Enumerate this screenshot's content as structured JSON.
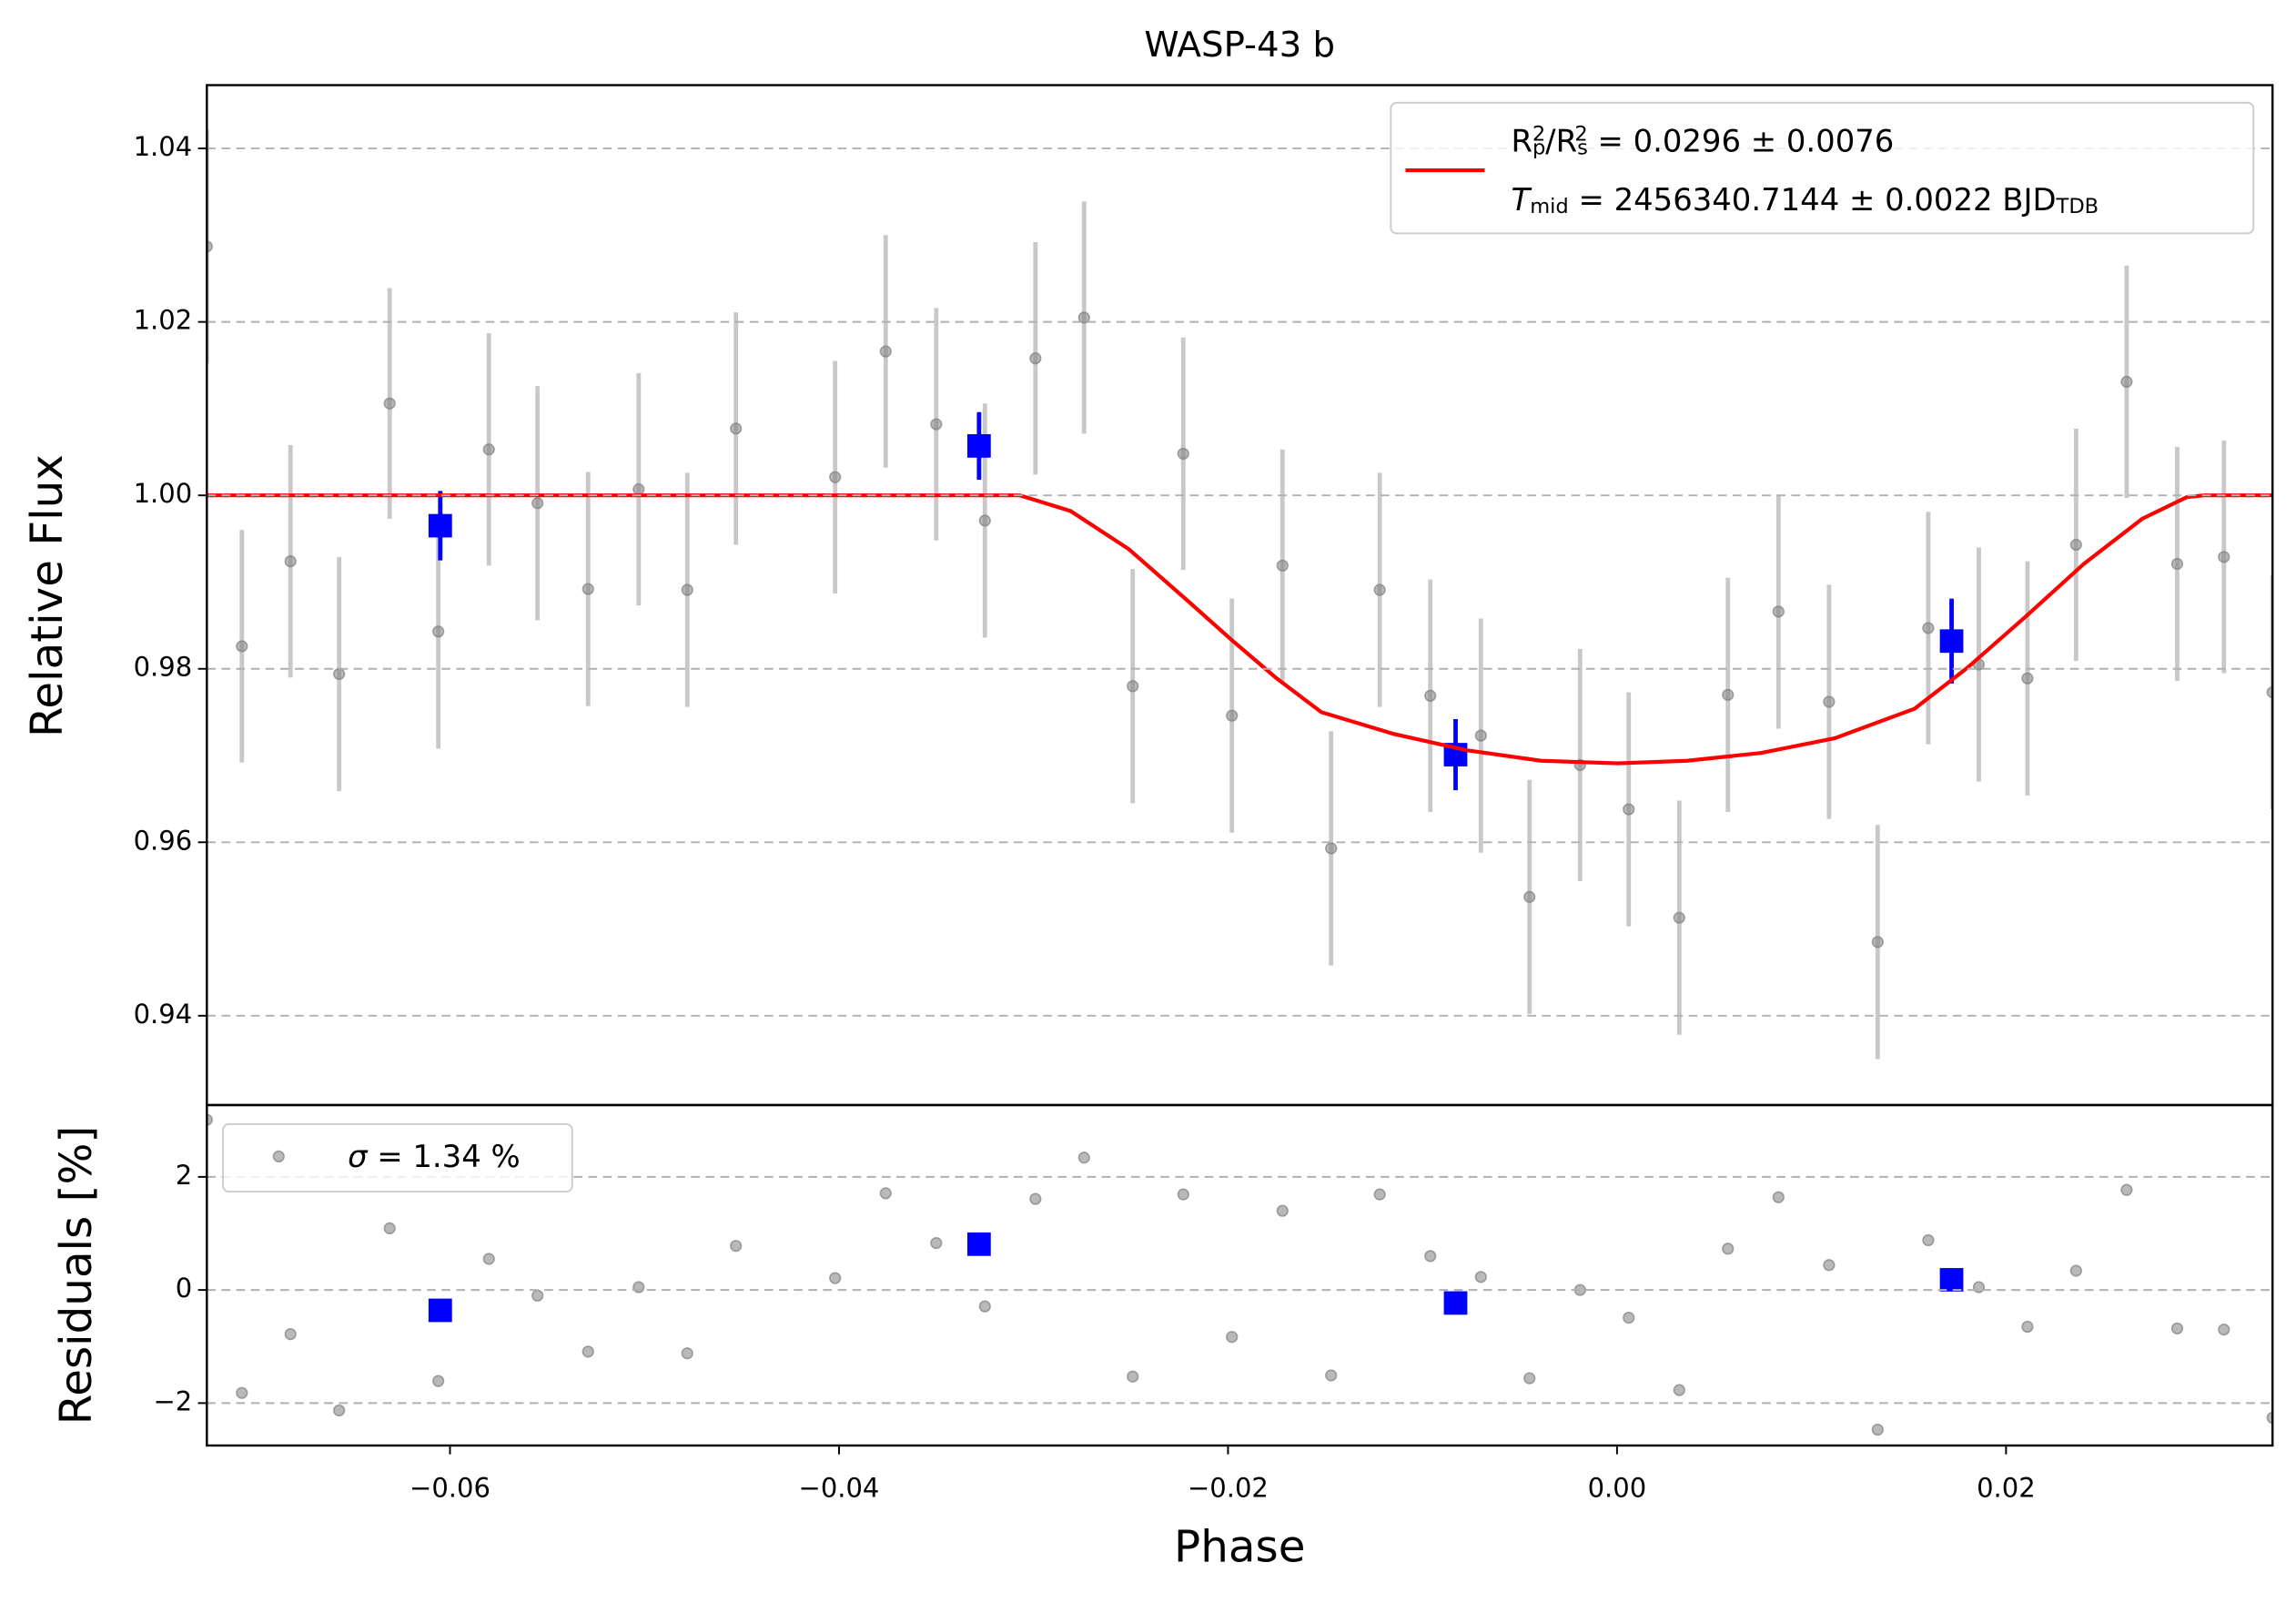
{
  "chart_data": [
    {
      "type": "errorbar",
      "title": "WASP-43 b",
      "ylabel": "Relative Flux",
      "xlim": [
        -0.0725,
        0.0337
      ],
      "ylim": [
        0.9297,
        1.0473
      ],
      "yticks": [
        0.94,
        0.96,
        0.98,
        {
          "value": 1,
          "label": "1.00"
        },
        1.02,
        1.04
      ],
      "grid": true,
      "legend": "upper right",
      "series": [
        {
          "style": "points",
          "color": "#808080",
          "ecolor": "#c8c8c8",
          "x": [
            -0.0725,
            -0.0707,
            -0.0682,
            -0.0657,
            -0.0631,
            -0.0606,
            -0.058,
            -0.0555,
            -0.0529,
            -0.0503,
            -0.0478,
            -0.0453,
            -0.0402,
            -0.0376,
            -0.035,
            -0.0325,
            -0.0299,
            -0.0274,
            -0.0249,
            -0.0223,
            -0.0198,
            -0.0172,
            -0.0147,
            -0.0122,
            -0.0096,
            -0.007,
            -0.0045,
            -0.0019,
            0.0006,
            0.0032,
            0.0057,
            0.0083,
            0.0109,
            0.0134,
            0.016,
            0.0186,
            0.0211,
            0.0236,
            0.0262,
            0.0288,
            0.0312,
            0.0337
          ],
          "values": [
            1.0287,
            0.9826,
            0.9924,
            0.9794,
            1.0106,
            0.9843,
            1.0053,
            0.9991,
            0.9892,
            1.0007,
            0.9891,
            1.0077,
            1.0021,
            1.0166,
            1.0082,
            0.9971,
            1.0158,
            1.0205,
            0.978,
            1.0048,
            0.9746,
            0.9919,
            0.9593,
            0.9891,
            0.9769,
            0.9723,
            0.9537,
            0.9689,
            0.9638,
            0.9513,
            0.977,
            0.9866,
            0.9762,
            0.9485,
            0.9847,
            0.9805,
            0.9789,
            0.9943,
            1.0131,
            0.9921,
            0.9929,
            0.9773
          ],
          "errors": [
            0.0135,
            0.0134,
            0.0134,
            0.0135,
            0.0133,
            0.0135,
            0.0134,
            0.0135,
            0.0135,
            0.0134,
            0.0135,
            0.0134,
            0.0134,
            0.0134,
            0.0134,
            0.0135,
            0.0134,
            0.0134,
            0.0135,
            0.0134,
            0.0135,
            0.0134,
            0.0135,
            0.0135,
            0.0134,
            0.0135,
            0.0135,
            0.0134,
            0.0135,
            0.0135,
            0.0135,
            0.0135,
            0.0135,
            0.0135,
            0.0134,
            0.0135,
            0.0135,
            0.0134,
            0.0134,
            0.0135,
            0.0134,
            0.0135
          ]
        },
        {
          "style": "squares",
          "color": "#0000ff",
          "ecolor": "#0000ff",
          "x": [
            -0.0605,
            -0.0328,
            -0.0083,
            0.0172
          ],
          "values": [
            0.9965,
            1.0057,
            0.9701,
            0.9832
          ],
          "errors": [
            0.004,
            0.0039,
            0.0041,
            0.0049
          ]
        },
        {
          "style": "line",
          "color": "#ff0000",
          "name_parts": [
            [
              "R",
              ""
            ],
            [
              "p",
              "sub"
            ],
            [
              "2",
              "sup"
            ],
            [
              "/R",
              ""
            ],
            [
              "s",
              "sub"
            ],
            [
              "2",
              "sup"
            ],
            [
              " = 0.0296 ± 0.0076",
              ""
            ]
          ],
          "name_parts_2": [
            [
              "T",
              "it"
            ],
            [
              "mid",
              "sub"
            ],
            [
              " = 2456340.7144 ± 0.0022 BJD",
              ""
            ],
            [
              "TDB",
              "sub"
            ]
          ],
          "x": [
            -0.0725,
            -0.0307,
            -0.0281,
            -0.0251,
            -0.022,
            -0.0198,
            -0.0175,
            -0.0152,
            -0.0115,
            -0.0077,
            -0.0039,
            0,
            0.0036,
            0.0074,
            0.0112,
            0.0153,
            0.018,
            0.021,
            0.024,
            0.027,
            0.0293,
            0.0302,
            0.0337
          ],
          "values": [
            1,
            1,
            0.9982,
            0.9938,
            0.9877,
            0.9833,
            0.9789,
            0.975,
            0.9725,
            0.9706,
            0.9694,
            0.9691,
            0.9694,
            0.9703,
            0.972,
            0.9754,
            0.9801,
            0.986,
            0.9921,
            0.9973,
            0.9998,
            1,
            1
          ]
        }
      ]
    },
    {
      "type": "scatter",
      "xlabel": "Phase",
      "ylabel": "Residuals [%]",
      "xlim": [
        -0.0725,
        0.0337
      ],
      "ylim": [
        -2.75,
        3.27
      ],
      "xticks": [
        {
          "value": -0.06,
          "label": "−0.06"
        },
        {
          "value": -0.04,
          "label": "−0.04"
        },
        {
          "value": -0.02,
          "label": "−0.02"
        },
        {
          "value": 0,
          "label": "0.00"
        },
        0.02
      ],
      "yticks": [
        {
          "value": -2,
          "label": "−2"
        },
        0,
        2
      ],
      "grid": true,
      "legend": "upper left",
      "series": [
        {
          "style": "points",
          "color": "#808080",
          "name_parts": [
            [
              "σ",
              "it"
            ],
            [
              " = 1.34 %",
              ""
            ]
          ],
          "x": [
            -0.0725,
            -0.0707,
            -0.0682,
            -0.0657,
            -0.0631,
            -0.0606,
            -0.058,
            -0.0555,
            -0.0529,
            -0.0503,
            -0.0478,
            -0.0453,
            -0.0402,
            -0.0376,
            -0.035,
            -0.0325,
            -0.0299,
            -0.0274,
            -0.0249,
            -0.0223,
            -0.0198,
            -0.0172,
            -0.0147,
            -0.0122,
            -0.0096,
            -0.007,
            -0.0045,
            -0.0019,
            0.0006,
            0.0032,
            0.0057,
            0.0083,
            0.0109,
            0.0134,
            0.016,
            0.0186,
            0.0211,
            0.0236,
            0.0262,
            0.0288,
            0.0312,
            0.0337
          ],
          "values": [
            3.01,
            -1.82,
            -0.78,
            -2.13,
            1.09,
            -1.61,
            0.55,
            -0.1,
            -1.09,
            0.05,
            -1.12,
            0.78,
            0.21,
            1.71,
            0.83,
            -0.29,
            1.61,
            2.34,
            -1.53,
            1.69,
            -0.83,
            1.4,
            -1.51,
            1.69,
            0.6,
            0.23,
            -1.56,
            0,
            -0.49,
            -1.77,
            0.73,
            1.64,
            0.44,
            -2.47,
            0.88,
            0.05,
            -0.65,
            0.34,
            1.77,
            -0.68,
            -0.7,
            -2.26
          ]
        },
        {
          "style": "squares",
          "color": "#0000ff",
          "x": [
            -0.0605,
            -0.0328,
            -0.0083,
            0.0172
          ],
          "values": [
            -0.36,
            0.81,
            -0.23,
            0.18
          ]
        }
      ]
    }
  ]
}
